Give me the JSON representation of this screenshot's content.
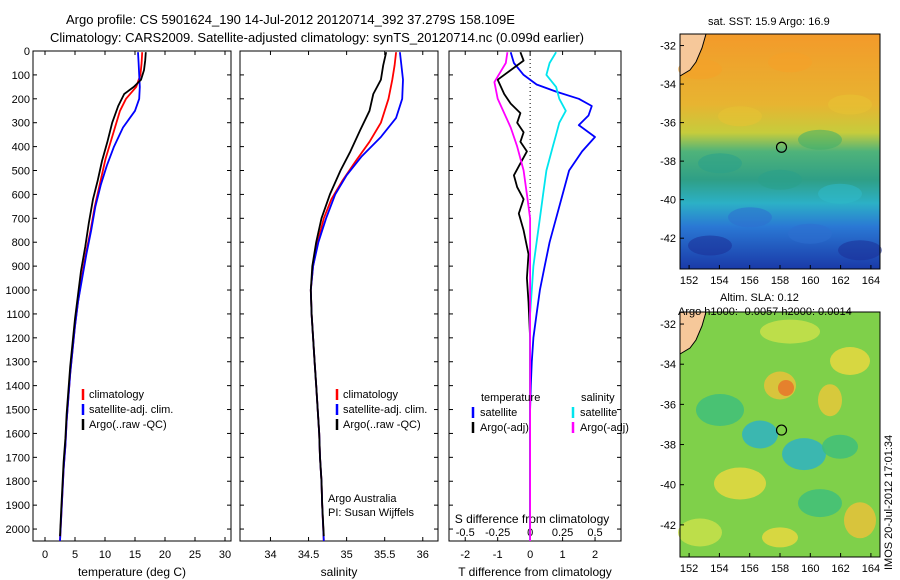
{
  "header": {
    "line1": "Argo profile: CS 5901624_190 14-Jul-2012 20120714_392 37.279S 158.109E",
    "line2": "Climatology: CARS2009. Satellite-adjusted climatology: synTS_20120714.nc (0.099d earlier)"
  },
  "colors": {
    "climatology": "#ff0000",
    "satellite": "#0000ff",
    "argo": "#000000",
    "salinity_satellite": "#00e5ee",
    "salinity_argo": "#ff00ff"
  },
  "chart_data": [
    {
      "type": "line",
      "xlabel": "temperature (deg C)",
      "xlim": [
        -2,
        31
      ],
      "xticks": [
        0,
        5,
        10,
        15,
        20,
        25,
        30
      ],
      "ylim": [
        0,
        2050
      ],
      "yticks": [
        0,
        100,
        200,
        300,
        400,
        500,
        600,
        700,
        800,
        900,
        1000,
        1100,
        1200,
        1300,
        1400,
        1500,
        1600,
        1700,
        1800,
        1900,
        2000
      ],
      "legend": [
        "climatology",
        "satellite-adj. clim.",
        "Argo(..raw -QC)"
      ],
      "series": [
        {
          "name": "climatology",
          "color": "#ff0000",
          "points": [
            [
              16.2,
              5
            ],
            [
              16.1,
              50
            ],
            [
              15.9,
              100
            ],
            [
              15.2,
              150
            ],
            [
              13.5,
              200
            ],
            [
              12.5,
              250
            ],
            [
              11.3,
              350
            ],
            [
              10.1,
              450
            ],
            [
              9.2,
              550
            ],
            [
              8.3,
              650
            ],
            [
              7.6,
              750
            ],
            [
              6.8,
              850
            ],
            [
              6.1,
              950
            ],
            [
              5.5,
              1050
            ],
            [
              5.0,
              1150
            ],
            [
              4.6,
              1250
            ],
            [
              4.2,
              1350
            ],
            [
              3.9,
              1450
            ],
            [
              3.6,
              1550
            ],
            [
              3.4,
              1650
            ],
            [
              3.1,
              1750
            ],
            [
              2.9,
              1850
            ],
            [
              2.7,
              1950
            ],
            [
              2.5,
              2050
            ]
          ]
        },
        {
          "name": "satellite-adj. clim.",
          "color": "#0000ff",
          "points": [
            [
              15.5,
              5
            ],
            [
              15.6,
              50
            ],
            [
              15.7,
              100
            ],
            [
              15.8,
              150
            ],
            [
              15.7,
              200
            ],
            [
              15.0,
              250
            ],
            [
              13.0,
              320
            ],
            [
              11.5,
              400
            ],
            [
              10.3,
              480
            ],
            [
              9.3,
              560
            ],
            [
              8.4,
              650
            ],
            [
              7.7,
              750
            ],
            [
              6.9,
              850
            ],
            [
              6.2,
              950
            ],
            [
              5.5,
              1050
            ],
            [
              5.0,
              1150
            ],
            [
              4.6,
              1250
            ],
            [
              4.2,
              1350
            ],
            [
              3.9,
              1450
            ],
            [
              3.6,
              1550
            ],
            [
              3.4,
              1650
            ],
            [
              3.1,
              1750
            ],
            [
              2.9,
              1850
            ],
            [
              2.7,
              1950
            ],
            [
              2.5,
              2050
            ]
          ]
        },
        {
          "name": "Argo(..raw -QC)",
          "color": "#000000",
          "points": [
            [
              16.8,
              5
            ],
            [
              16.7,
              40
            ],
            [
              16.5,
              80
            ],
            [
              16.0,
              120
            ],
            [
              14.8,
              150
            ],
            [
              13.2,
              180
            ],
            [
              12.2,
              230
            ],
            [
              11.2,
              300
            ],
            [
              10.4,
              380
            ],
            [
              9.5,
              460
            ],
            [
              8.8,
              540
            ],
            [
              8.0,
              620
            ],
            [
              7.3,
              720
            ],
            [
              6.7,
              820
            ],
            [
              6.0,
              920
            ],
            [
              5.5,
              1020
            ],
            [
              5.0,
              1120
            ],
            [
              4.6,
              1220
            ],
            [
              4.2,
              1320
            ],
            [
              3.9,
              1420
            ],
            [
              3.6,
              1520
            ],
            [
              3.4,
              1620
            ],
            [
              3.1,
              1720
            ],
            [
              2.9,
              1820
            ],
            [
              2.7,
              1920
            ],
            [
              2.5,
              2030
            ]
          ]
        }
      ]
    },
    {
      "type": "line",
      "xlabel": "salinity",
      "xlim": [
        33.6,
        36.2
      ],
      "xticks": [
        34,
        34.5,
        35,
        35.5,
        36
      ],
      "ylim": [
        0,
        2050
      ],
      "legend": [
        "climatology",
        "satellite-adj. clim.",
        "Argo(..raw -QC)"
      ],
      "annotation": [
        "Argo Australia",
        "PI: Susan Wijffels"
      ],
      "series": [
        {
          "name": "climatology",
          "color": "#ff0000",
          "points": [
            [
              35.65,
              5
            ],
            [
              35.63,
              60
            ],
            [
              35.6,
              120
            ],
            [
              35.55,
              200
            ],
            [
              35.45,
              300
            ],
            [
              35.3,
              380
            ],
            [
              35.12,
              460
            ],
            [
              34.95,
              540
            ],
            [
              34.8,
              620
            ],
            [
              34.7,
              700
            ],
            [
              34.62,
              800
            ],
            [
              34.56,
              900
            ],
            [
              34.53,
              1000
            ],
            [
              34.54,
              1100
            ],
            [
              34.56,
              1200
            ],
            [
              34.58,
              1300
            ],
            [
              34.6,
              1400
            ],
            [
              34.62,
              1500
            ],
            [
              34.64,
              1600
            ],
            [
              34.65,
              1700
            ],
            [
              34.67,
              1800
            ],
            [
              34.68,
              1900
            ],
            [
              34.7,
              2050
            ]
          ]
        },
        {
          "name": "satellite-adj. clim.",
          "color": "#0000ff",
          "points": [
            [
              35.7,
              5
            ],
            [
              35.72,
              60
            ],
            [
              35.74,
              120
            ],
            [
              35.73,
              200
            ],
            [
              35.65,
              280
            ],
            [
              35.45,
              360
            ],
            [
              35.2,
              440
            ],
            [
              35.0,
              520
            ],
            [
              34.85,
              600
            ],
            [
              34.73,
              700
            ],
            [
              34.63,
              800
            ],
            [
              34.56,
              900
            ],
            [
              34.53,
              1000
            ],
            [
              34.54,
              1100
            ],
            [
              34.56,
              1200
            ],
            [
              34.58,
              1300
            ],
            [
              34.6,
              1400
            ],
            [
              34.62,
              1500
            ],
            [
              34.64,
              1600
            ],
            [
              34.65,
              1700
            ],
            [
              34.67,
              1800
            ],
            [
              34.68,
              1900
            ],
            [
              34.7,
              2050
            ]
          ]
        },
        {
          "name": "Argo(..raw -QC)",
          "color": "#000000",
          "points": [
            [
              35.52,
              5
            ],
            [
              35.48,
              60
            ],
            [
              35.45,
              120
            ],
            [
              35.35,
              180
            ],
            [
              35.3,
              250
            ],
            [
              35.18,
              330
            ],
            [
              35.05,
              420
            ],
            [
              34.92,
              500
            ],
            [
              34.78,
              600
            ],
            [
              34.67,
              700
            ],
            [
              34.6,
              800
            ],
            [
              34.55,
              900
            ],
            [
              34.53,
              1000
            ],
            [
              34.54,
              1100
            ],
            [
              34.56,
              1200
            ],
            [
              34.58,
              1300
            ],
            [
              34.6,
              1400
            ],
            [
              34.62,
              1500
            ],
            [
              34.64,
              1600
            ],
            [
              34.65,
              1700
            ],
            [
              34.67,
              1800
            ],
            [
              34.68,
              1900
            ],
            [
              34.7,
              2030
            ]
          ]
        }
      ]
    },
    {
      "type": "line",
      "xlabel": "T difference from climatology",
      "xlabel_top": "S difference from climatology",
      "xlim": [
        -2.5,
        2.8
      ],
      "xticks": [
        -2,
        -1,
        0,
        1,
        2
      ],
      "xticks_top_labels": [
        "-0.5",
        "-0.25",
        "0",
        "0.25",
        "0.5"
      ],
      "xticks_top_pos": [
        -2,
        -1,
        0,
        1,
        2
      ],
      "ylim": [
        0,
        2050
      ],
      "legend_left_title": "temperature",
      "legend_right_title": "salinity",
      "legend_left": [
        "satellite",
        "Argo(-adj)"
      ],
      "legend_right": [
        "satellite",
        "Argo(-adj)"
      ],
      "series": [
        {
          "name": "T satellite",
          "color": "#0000ff",
          "points": [
            [
              -0.6,
              5
            ],
            [
              -0.5,
              50
            ],
            [
              -0.2,
              100
            ],
            [
              0.2,
              140
            ],
            [
              0.8,
              170
            ],
            [
              1.5,
              200
            ],
            [
              1.9,
              230
            ],
            [
              1.8,
              270
            ],
            [
              1.5,
              310
            ],
            [
              2.0,
              360
            ],
            [
              1.6,
              420
            ],
            [
              1.2,
              500
            ],
            [
              1.0,
              600
            ],
            [
              0.8,
              700
            ],
            [
              0.6,
              800
            ],
            [
              0.45,
              900
            ],
            [
              0.3,
              1000
            ],
            [
              0.2,
              1100
            ],
            [
              0.1,
              1200
            ],
            [
              0.05,
              1300
            ],
            [
              0.02,
              1400
            ],
            [
              0.0,
              1500
            ],
            [
              0.0,
              2050
            ]
          ]
        },
        {
          "name": "T Argo(-adj)",
          "color": "#000000",
          "points": [
            [
              -0.3,
              5
            ],
            [
              -0.2,
              40
            ],
            [
              -0.6,
              80
            ],
            [
              -1.0,
              120
            ],
            [
              -0.8,
              180
            ],
            [
              -0.6,
              220
            ],
            [
              -0.3,
              260
            ],
            [
              -0.4,
              300
            ],
            [
              -0.2,
              340
            ],
            [
              -0.3,
              380
            ],
            [
              -0.1,
              420
            ],
            [
              -0.3,
              470
            ],
            [
              -0.5,
              520
            ],
            [
              -0.4,
              570
            ],
            [
              -0.2,
              620
            ],
            [
              -0.35,
              680
            ],
            [
              -0.2,
              750
            ],
            [
              -0.05,
              850
            ],
            [
              -0.1,
              950
            ],
            [
              -0.05,
              1050
            ],
            [
              0.0,
              1200
            ],
            [
              0.0,
              2030
            ]
          ]
        },
        {
          "name": "S satellite",
          "color": "#00e5ee",
          "points": [
            [
              0.8,
              5
            ],
            [
              0.6,
              50
            ],
            [
              0.5,
              100
            ],
            [
              0.8,
              150
            ],
            [
              0.9,
              200
            ],
            [
              1.1,
              250
            ],
            [
              0.9,
              300
            ],
            [
              0.8,
              350
            ],
            [
              0.7,
              400
            ],
            [
              0.5,
              500
            ],
            [
              0.4,
              600
            ],
            [
              0.3,
              700
            ],
            [
              0.2,
              800
            ],
            [
              0.1,
              900
            ],
            [
              0.05,
              1000
            ],
            [
              0.0,
              1100
            ],
            [
              0.0,
              2050
            ]
          ]
        },
        {
          "name": "S Argo(-adj)",
          "color": "#ff00ff",
          "points": [
            [
              -0.7,
              5
            ],
            [
              -0.75,
              50
            ],
            [
              -1.1,
              130
            ],
            [
              -1.0,
              200
            ],
            [
              -0.8,
              260
            ],
            [
              -0.6,
              320
            ],
            [
              -0.4,
              400
            ],
            [
              -0.2,
              500
            ],
            [
              -0.1,
              600
            ],
            [
              0.0,
              700
            ],
            [
              0.0,
              2050
            ]
          ]
        }
      ]
    }
  ],
  "maps": {
    "sst": {
      "title": "sat. SST: 15.9 Argo: 16.9",
      "xticks": [
        "152",
        "154",
        "156",
        "158",
        "160",
        "162",
        "164"
      ],
      "yticks": [
        "-32",
        "-34",
        "-36",
        "-38",
        "-40",
        "-42"
      ],
      "argo_lon": 158.1,
      "argo_lat": -37.28
    },
    "sla": {
      "title1": "Altim. SLA: 0.12",
      "title2": "Argo h1000: -0.0057 h2000: 0.0014",
      "xticks": [
        "152",
        "154",
        "156",
        "158",
        "160",
        "162",
        "164"
      ],
      "yticks": [
        "-32",
        "-34",
        "-36",
        "-38",
        "-40",
        "-42"
      ],
      "argo_lon": 158.1,
      "argo_lat": -37.28
    }
  },
  "footer": {
    "stamp": "IMOS 20-Jul-2012 17:01:34"
  }
}
